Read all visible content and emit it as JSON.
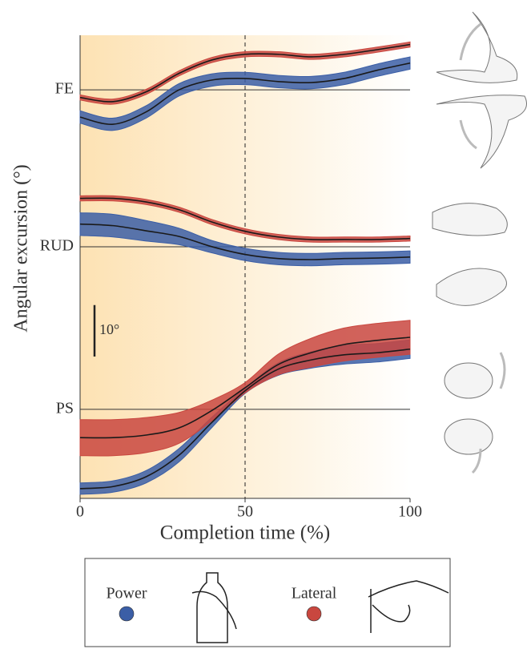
{
  "chart_data": {
    "type": "band-line",
    "ylabel": "Angular excursion (°)",
    "xlabel": "Completion time (%)",
    "x": [
      0,
      10,
      20,
      30,
      40,
      50,
      60,
      70,
      80,
      90,
      100
    ],
    "xlim": [
      0,
      100
    ],
    "xticks": [
      0,
      50,
      100
    ],
    "ylim": [
      0,
      90
    ],
    "yticks": [
      {
        "value": 79.4,
        "label": "FE"
      },
      {
        "value": 48.9,
        "label": "RUD"
      },
      {
        "value": 17.3,
        "label": "PS"
      }
    ],
    "vline": 50,
    "scale_bar": {
      "value": 10,
      "label": "10°"
    },
    "series": [
      {
        "name": "Power",
        "color": "#3b5ea6",
        "values": [
          [
            74.1,
            72.7,
            75.1,
            79.4,
            81.3,
            81.6,
            81.0,
            80.8,
            81.6,
            83.2,
            84.6
          ],
          [
            53.3,
            53.0,
            52.0,
            50.9,
            48.9,
            47.4,
            46.6,
            46.4,
            46.6,
            46.7,
            46.9
          ],
          [
            1.9,
            2.3,
            4.2,
            8.4,
            14.8,
            20.9,
            25.1,
            26.9,
            27.9,
            28.3,
            29.0
          ]
        ],
        "spread": [
          [
            1.2,
            1.2,
            1.2,
            1.2,
            1.2,
            1.2,
            1.2,
            1.2,
            1.2,
            1.2,
            1.2
          ],
          [
            2.2,
            2.2,
            2.0,
            1.6,
            1.2,
            1.2,
            1.2,
            1.2,
            1.2,
            1.2,
            1.2
          ],
          [
            1.1,
            1.1,
            1.2,
            1.3,
            1.0,
            0.5,
            1.2,
            1.6,
            1.8,
            1.8,
            1.8
          ]
        ]
      },
      {
        "name": "Lateral",
        "color": "#c9473f",
        "values": [
          [
            77.9,
            77.1,
            79.0,
            82.6,
            85.2,
            86.3,
            86.3,
            85.8,
            86.3,
            87.2,
            88.2
          ],
          [
            58.3,
            58.3,
            57.6,
            56.1,
            53.7,
            51.9,
            50.8,
            50.3,
            50.3,
            50.3,
            50.5
          ],
          [
            11.8,
            11.8,
            12.3,
            13.7,
            17.1,
            21.5,
            26.0,
            28.3,
            29.9,
            30.7,
            31.3
          ]
        ],
        "spread": [
          [
            0.5,
            0.5,
            0.5,
            0.5,
            0.5,
            0.5,
            0.5,
            0.5,
            0.5,
            0.5,
            0.5
          ],
          [
            0.5,
            0.5,
            0.5,
            0.5,
            0.5,
            0.5,
            0.5,
            0.5,
            0.5,
            0.5,
            0.5
          ],
          [
            3.5,
            3.5,
            3.4,
            3.0,
            2.0,
            1.0,
            2.0,
            2.8,
            3.2,
            3.3,
            3.3
          ]
        ]
      }
    ]
  }
}
